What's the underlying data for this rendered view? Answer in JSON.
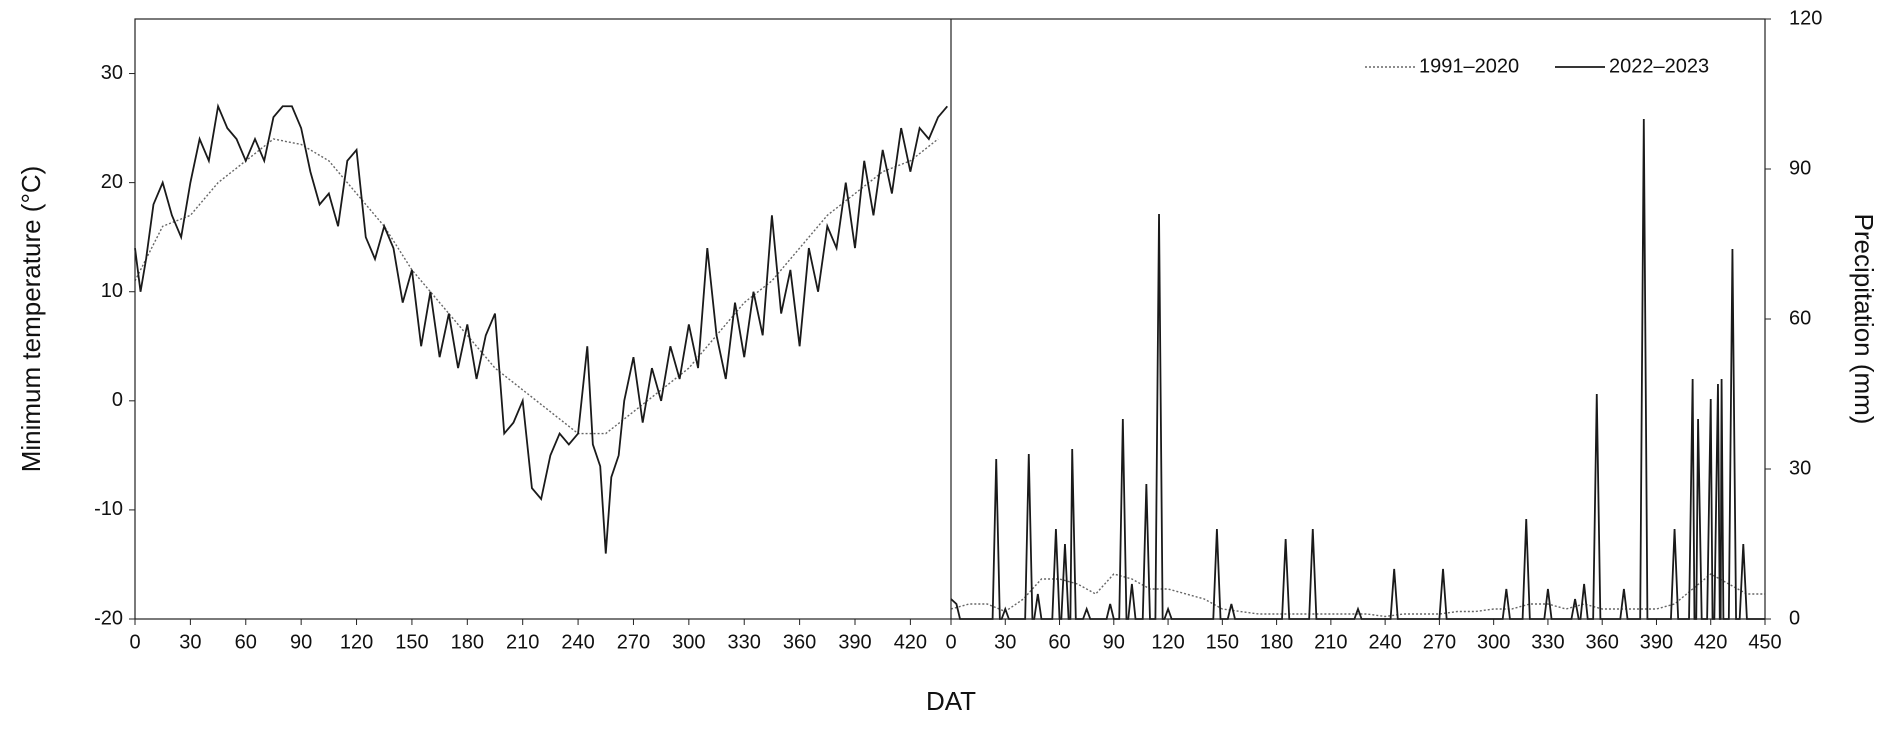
{
  "chart_data": [
    {
      "type": "line",
      "ylabel": "Minimum temperature (°C)",
      "xlabel": "DAT",
      "xlim": [
        0,
        442
      ],
      "xticks": [
        0,
        30,
        60,
        90,
        120,
        150,
        180,
        210,
        240,
        270,
        300,
        330,
        360,
        390,
        420
      ],
      "ylim": [
        -20,
        35
      ],
      "yticks": [
        -20,
        -10,
        0,
        10,
        20,
        30
      ],
      "series": [
        {
          "color": "#666666",
          "dash": "dotted",
          "x": [
            0,
            15,
            30,
            45,
            60,
            75,
            90,
            105,
            120,
            135,
            150,
            165,
            180,
            195,
            210,
            225,
            240,
            255,
            270,
            285,
            300,
            315,
            330,
            345,
            360,
            375,
            390,
            405,
            420,
            435
          ],
          "values": [
            11,
            16,
            17,
            20,
            22,
            24,
            23.5,
            22,
            19,
            16,
            12,
            9,
            6,
            3,
            1,
            -1,
            -3,
            -3,
            -1,
            1,
            3,
            6,
            9,
            11,
            14,
            17,
            19,
            21,
            22,
            24
          ]
        },
        {
          "color": "#1a1a1a",
          "dash": "solid",
          "x": [
            0,
            3,
            6,
            10,
            15,
            20,
            25,
            30,
            35,
            40,
            45,
            50,
            55,
            60,
            65,
            70,
            75,
            80,
            85,
            90,
            95,
            100,
            105,
            110,
            115,
            120,
            125,
            130,
            135,
            140,
            145,
            150,
            155,
            160,
            165,
            170,
            175,
            180,
            185,
            190,
            195,
            200,
            205,
            210,
            215,
            220,
            225,
            230,
            235,
            240,
            245,
            248,
            252,
            255,
            258,
            262,
            265,
            270,
            275,
            280,
            285,
            290,
            295,
            300,
            305,
            310,
            315,
            320,
            325,
            330,
            335,
            340,
            345,
            350,
            355,
            360,
            365,
            370,
            375,
            380,
            385,
            390,
            395,
            400,
            405,
            410,
            415,
            420,
            425,
            430,
            435,
            440
          ],
          "values": [
            14,
            10,
            13,
            18,
            20,
            17,
            15,
            20,
            24,
            22,
            27,
            25,
            24,
            22,
            24,
            22,
            26,
            27,
            27,
            25,
            21,
            18,
            19,
            16,
            22,
            23,
            15,
            13,
            16,
            14,
            9,
            12,
            5,
            10,
            4,
            8,
            3,
            7,
            2,
            6,
            8,
            -3,
            -2,
            0,
            -8,
            -9,
            -5,
            -3,
            -4,
            -3,
            5,
            -4,
            -6,
            -14,
            -7,
            -5,
            0,
            4,
            -2,
            3,
            0,
            5,
            2,
            7,
            3,
            14,
            6,
            2,
            9,
            4,
            10,
            6,
            17,
            8,
            12,
            5,
            14,
            10,
            16,
            14,
            20,
            14,
            22,
            17,
            23,
            19,
            25,
            21,
            25,
            24,
            26,
            27
          ]
        }
      ]
    },
    {
      "type": "line",
      "y2label": "Precipitation (mm)",
      "legend": "upper right",
      "xlim": [
        0,
        450
      ],
      "xticks": [
        0,
        30,
        60,
        90,
        120,
        150,
        180,
        210,
        240,
        270,
        300,
        330,
        360,
        390,
        420,
        450
      ],
      "y2lim": [
        0,
        120
      ],
      "y2ticks": [
        0,
        30,
        60,
        90,
        120
      ],
      "series": [
        {
          "name": "1991–2020",
          "color": "#666666",
          "dash": "dotted",
          "axis": "y2",
          "x": [
            0,
            10,
            20,
            30,
            40,
            50,
            60,
            70,
            80,
            90,
            100,
            110,
            120,
            130,
            140,
            150,
            160,
            170,
            180,
            190,
            200,
            210,
            220,
            230,
            240,
            250,
            260,
            270,
            280,
            290,
            300,
            310,
            320,
            330,
            340,
            350,
            360,
            370,
            380,
            390,
            400,
            410,
            420,
            430,
            440,
            450
          ],
          "values": [
            2,
            3,
            3,
            1.5,
            4,
            8,
            8,
            7,
            5,
            9,
            8,
            6,
            6,
            5,
            4,
            2,
            1.5,
            1,
            1,
            1,
            1,
            1,
            1,
            1,
            0.5,
            1,
            1,
            1,
            1.5,
            1.5,
            2,
            2,
            3,
            3,
            2,
            3,
            2,
            2,
            2,
            2,
            3,
            6,
            9,
            7,
            5,
            5
          ]
        },
        {
          "name": "2022–2023",
          "color": "#1a1a1a",
          "dash": "solid",
          "axis": "y2",
          "x": [
            0,
            3,
            5,
            23,
            25,
            27,
            28,
            30,
            32,
            41,
            43,
            45,
            46,
            48,
            50,
            56,
            58,
            60,
            61,
            63,
            65,
            66,
            67,
            69,
            73,
            75,
            77,
            86,
            88,
            90,
            93,
            95,
            97,
            98,
            100,
            102,
            106,
            108,
            110,
            113,
            115,
            117,
            118,
            120,
            122,
            145,
            147,
            149,
            153,
            155,
            157,
            183,
            185,
            187,
            198,
            200,
            202,
            223,
            225,
            227,
            243,
            245,
            247,
            270,
            272,
            274,
            305,
            307,
            309,
            316,
            318,
            320,
            328,
            330,
            332,
            343,
            345,
            347,
            348,
            350,
            352,
            355,
            357,
            359,
            370,
            372,
            374,
            381,
            383,
            385,
            398,
            400,
            402,
            408,
            410,
            411,
            412,
            413,
            415,
            418,
            420,
            421,
            422,
            424,
            425,
            425.5,
            426,
            427,
            430,
            432,
            434,
            436,
            438,
            440,
            450
          ],
          "values": [
            4,
            3,
            0,
            0,
            32,
            0,
            0,
            2,
            0,
            0,
            33,
            0,
            0,
            5,
            0,
            0,
            18,
            0,
            0,
            15,
            0,
            0,
            34,
            0,
            0,
            2,
            0,
            0,
            3,
            0,
            0,
            40,
            0,
            0,
            7,
            0,
            0,
            27,
            0,
            0,
            81,
            0,
            0,
            2,
            0,
            0,
            18,
            0,
            0,
            3,
            0,
            0,
            16,
            0,
            0,
            18,
            0,
            0,
            2,
            0,
            0,
            10,
            0,
            0,
            10,
            0,
            0,
            6,
            0,
            0,
            20,
            0,
            0,
            6,
            0,
            0,
            4,
            0,
            0,
            7,
            0,
            0,
            45,
            0,
            0,
            6,
            0,
            0,
            100,
            0,
            0,
            18,
            0,
            0,
            48,
            0,
            0,
            40,
            0,
            0,
            44,
            0,
            0,
            47,
            0,
            0,
            48,
            0,
            0,
            74,
            0,
            0,
            15,
            0,
            0
          ]
        }
      ]
    }
  ]
}
